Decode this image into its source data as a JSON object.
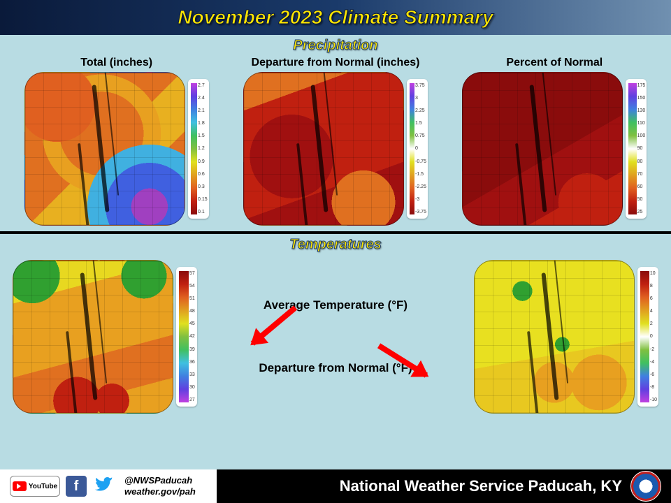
{
  "header": {
    "title": "November 2023 Climate Summary"
  },
  "sections": {
    "precip_label": "Precipitation",
    "temp_label": "Temperatures"
  },
  "maps": {
    "precip_total": {
      "title": "Total (inches)",
      "legend_ticks": [
        "2.7",
        "2.4",
        "2.1",
        "1.8",
        "1.5",
        "1.2",
        "0.9",
        "0.6",
        "0.3",
        "0.15",
        "0.1"
      ],
      "legend_gradient": "linear-gradient(to bottom,#c040e0,#6040e0,#4080e0,#40c0e0,#40c060,#80c040,#e0e020,#e0a020,#e06020,#c02010,#8a0c0c)"
    },
    "precip_dep": {
      "title": "Departure from Normal (inches)",
      "legend_ticks": [
        "3.75",
        "3",
        "2.25",
        "1.5",
        "0.75",
        "0",
        "-0.75",
        "-1.5",
        "-2.25",
        "-3",
        "-3.75"
      ],
      "legend_gradient": "linear-gradient(to bottom,#c040e0,#6040e0,#4080e0,#40c060,#80c040,#ffffff,#e0e020,#e0a020,#e06020,#c02010,#8a0c0c)"
    },
    "precip_pct": {
      "title": "Percent of Normal",
      "legend_ticks": [
        "175",
        "150",
        "130",
        "110",
        "100",
        "90",
        "80",
        "70",
        "60",
        "50",
        "25"
      ],
      "legend_gradient": "linear-gradient(to bottom,#c040e0,#6040e0,#4080e0,#40c060,#80c040,#ffffff,#e0e020,#e0a020,#e06020,#c02010,#8a0c0c)"
    },
    "temp_avg": {
      "label": "Average Temperature (°F)",
      "legend_ticks": [
        "57",
        "54",
        "51",
        "48",
        "45",
        "42",
        "39",
        "36",
        "33",
        "30",
        "27"
      ],
      "legend_gradient": "linear-gradient(to bottom,#8a0c0c,#c02010,#e06020,#e0a020,#e0e020,#80c040,#40c060,#40c0e0,#4080e0,#6040e0,#c040e0)"
    },
    "temp_dep": {
      "label": "Departure from Normal (°F)",
      "legend_ticks": [
        "10",
        "8",
        "6",
        "4",
        "2",
        "0",
        "-2",
        "-4",
        "-6",
        "-8",
        "-10"
      ],
      "legend_gradient": "linear-gradient(to bottom,#8a0c0c,#c02010,#e06020,#e0a020,#e0e020,#ffffff,#80c040,#40c060,#4080e0,#6040e0,#c040e0)"
    }
  },
  "footer": {
    "handle": "@NWSPaducah",
    "url": "weather.gov/pah",
    "org": "National Weather Service Paducah, KY",
    "youtube_label": "YouTube"
  }
}
